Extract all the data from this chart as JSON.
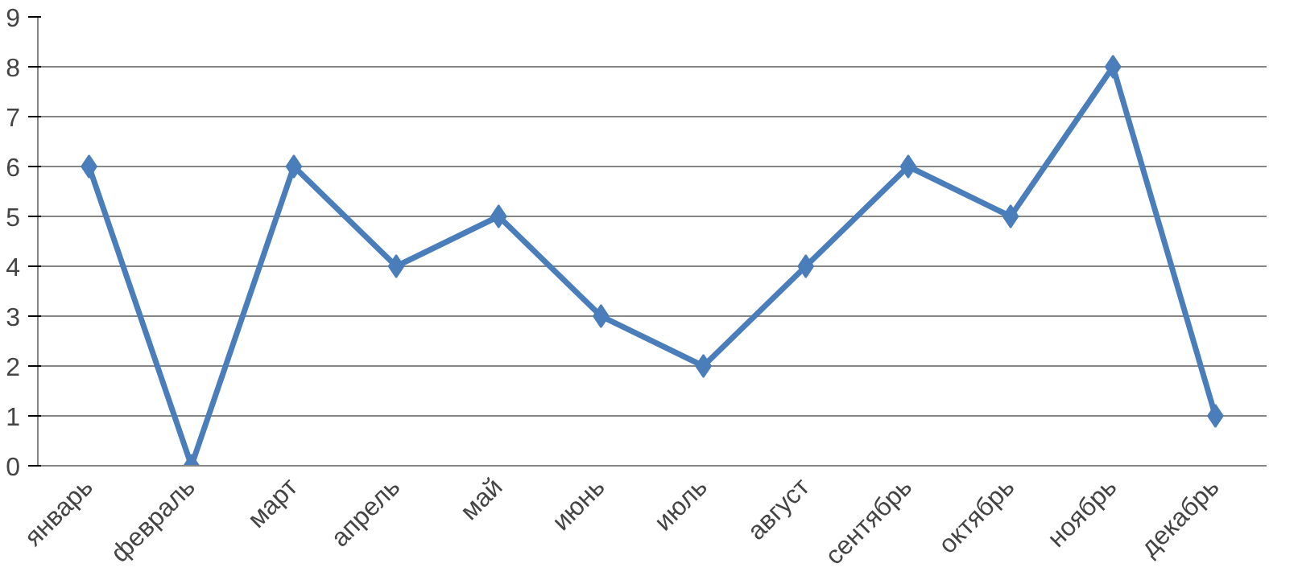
{
  "chart_data": {
    "type": "line",
    "categories": [
      "январь",
      "февраль",
      "март",
      "апрель",
      "май",
      "июнь",
      "июль",
      "август",
      "сентябрь",
      "октябрь",
      "ноябрь",
      "декабрь"
    ],
    "series": [
      {
        "color": "#4a7ebb",
        "values": [
          6,
          0,
          6,
          4,
          5,
          3,
          2,
          4,
          6,
          5,
          8,
          1
        ]
      }
    ],
    "ylim": [
      0,
      9
    ],
    "yticks": [
      0,
      1,
      2,
      3,
      4,
      5,
      6,
      7,
      8,
      9
    ],
    "grid": "y",
    "marker": "diamond",
    "line_style": "solid"
  }
}
